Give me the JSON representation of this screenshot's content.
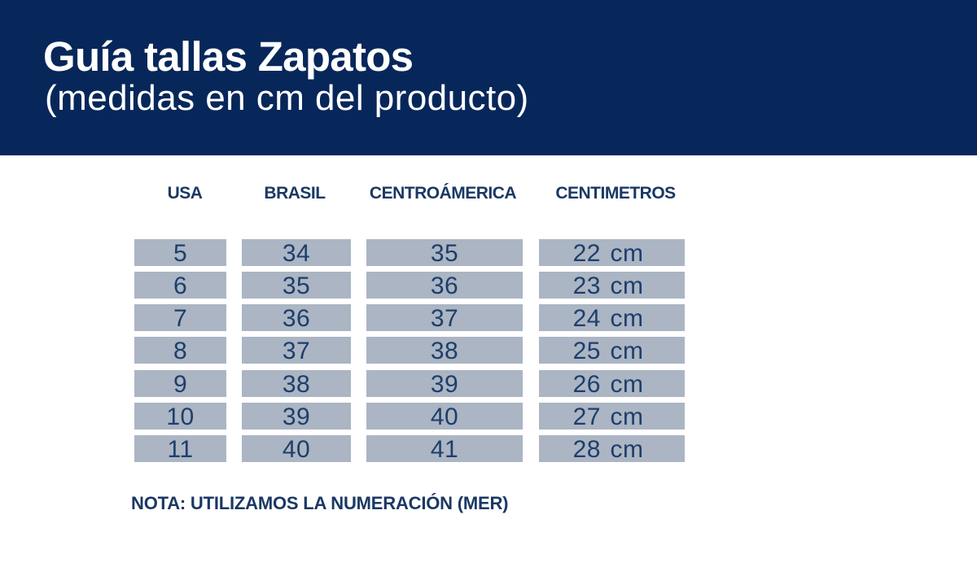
{
  "header": {
    "title": "Guía tallas Zapatos",
    "subtitle": "(medidas en cm del producto)"
  },
  "size_table": {
    "columns": [
      "USA",
      "BRASIL",
      "CENTROÁMERICA",
      "CENTIMETROS"
    ],
    "rows": [
      [
        "5",
        "34",
        "35",
        "22 cm"
      ],
      [
        "6",
        "35",
        "36",
        "23 cm"
      ],
      [
        "7",
        "36",
        "37",
        "24 cm"
      ],
      [
        "8",
        "37",
        "38",
        "25 cm"
      ],
      [
        "9",
        "38",
        "39",
        "26 cm"
      ],
      [
        "10",
        "39",
        "40",
        "27 cm"
      ],
      [
        "11",
        "40",
        "41",
        "28 cm"
      ]
    ]
  },
  "note": {
    "text": "NOTA: UTILIZAMOS LA NUMERACIÓN (MER)"
  },
  "colors": {
    "banner_background": "#07275a",
    "banner_text": "#ffffff",
    "column_header_text": "#1b3864",
    "cell_background": "#abb5c3",
    "cell_text": "#1d3e6b",
    "note_text": "#1b3864",
    "page_background": "#ffffff"
  },
  "chart_data": {
    "type": "table",
    "title": "Guía tallas Zapatos",
    "subtitle": "(medidas en cm del producto)",
    "columns": [
      "USA",
      "BRASIL",
      "CENTROÁMERICA",
      "CENTIMETROS"
    ],
    "rows": [
      [
        "5",
        "34",
        "35",
        "22 cm"
      ],
      [
        "6",
        "35",
        "36",
        "23 cm"
      ],
      [
        "7",
        "36",
        "37",
        "24 cm"
      ],
      [
        "8",
        "37",
        "38",
        "25 cm"
      ],
      [
        "9",
        "38",
        "39",
        "26 cm"
      ],
      [
        "10",
        "39",
        "40",
        "27 cm"
      ],
      [
        "11",
        "40",
        "41",
        "28 cm"
      ]
    ],
    "note": "NOTA: UTILIZAMOS LA NUMERACIÓN (MER)"
  }
}
